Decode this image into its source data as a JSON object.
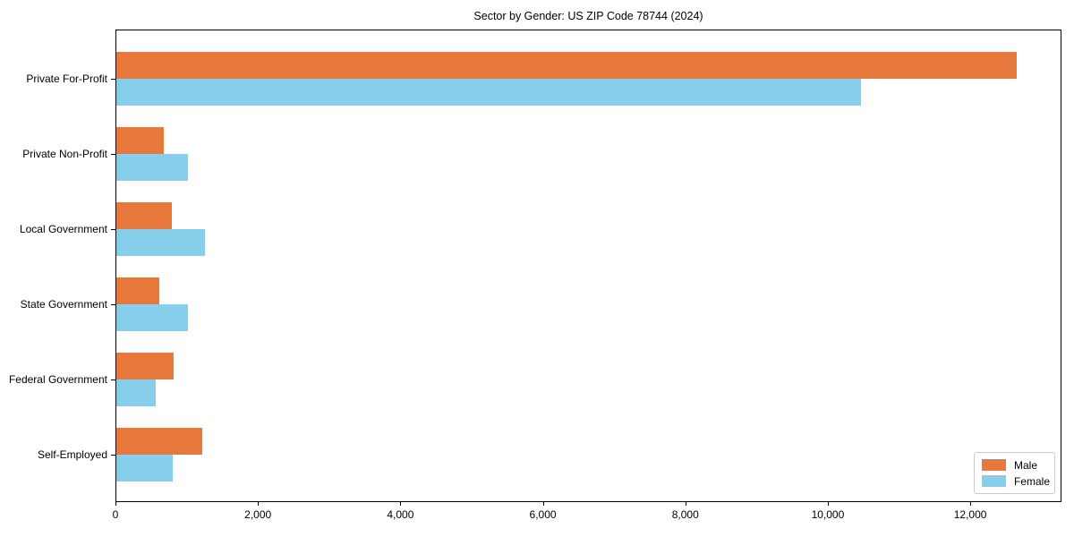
{
  "chart_data": {
    "type": "bar",
    "orientation": "horizontal",
    "title": "Sector by Gender: US ZIP Code 78744 (2024)",
    "categories": [
      "Private For-Profit",
      "Private Non-Profit",
      "Local Government",
      "State Government",
      "Federal Government",
      "Self-Employed"
    ],
    "series": [
      {
        "name": "Male",
        "color": "#E8793C",
        "values": [
          12640,
          670,
          780,
          600,
          800,
          1200
        ]
      },
      {
        "name": "Female",
        "color": "#87CEEB",
        "values": [
          10450,
          1010,
          1250,
          1010,
          550,
          790
        ]
      }
    ],
    "xlabel": "",
    "ylabel": "",
    "xlim": [
      0,
      13280
    ],
    "xticks": [
      0,
      2000,
      4000,
      6000,
      8000,
      10000,
      12000
    ],
    "xtick_labels": [
      "0",
      "2,000",
      "4,000",
      "6,000",
      "8,000",
      "10,000",
      "12,000"
    ],
    "legend": {
      "position": "lower-right",
      "entries": [
        "Male",
        "Female"
      ]
    },
    "grid": false
  },
  "colors": {
    "male": "#E8793C",
    "female": "#87CEEB",
    "axis": "#000000",
    "background": "#FFFFFF",
    "legend_border": "#CCCCCC"
  }
}
